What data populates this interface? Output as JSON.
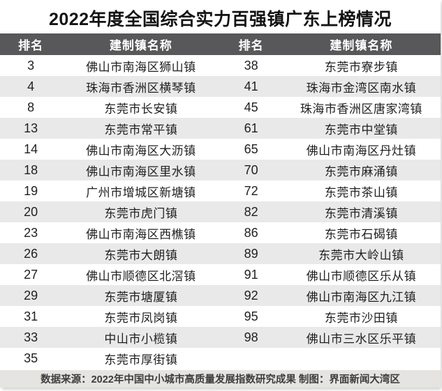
{
  "title": "2022年度全国综合实力百强镇广东上榜情况",
  "table": {
    "headers": {
      "rank_left": "排名",
      "town_left": "建制镇名称",
      "rank_right": "排名",
      "town_right": "建制镇名称"
    },
    "rows": [
      {
        "rank_left": "3",
        "town_left": "佛山市南海区狮山镇",
        "rank_right": "38",
        "town_right": "东莞市寮步镇"
      },
      {
        "rank_left": "4",
        "town_left": "珠海市香洲区横琴镇",
        "rank_right": "41",
        "town_right": "珠海市金湾区南水镇"
      },
      {
        "rank_left": "8",
        "town_left": "东莞市长安镇",
        "rank_right": "45",
        "town_right": "珠海市香洲区唐家湾镇"
      },
      {
        "rank_left": "13",
        "town_left": "东莞市常平镇",
        "rank_right": "61",
        "town_right": "东莞市中堂镇"
      },
      {
        "rank_left": "14",
        "town_left": "佛山市南海区大沥镇",
        "rank_right": "65",
        "town_right": "佛山市南海区丹灶镇"
      },
      {
        "rank_left": "18",
        "town_left": "佛山市南海区里水镇",
        "rank_right": "70",
        "town_right": "东莞市麻涌镇"
      },
      {
        "rank_left": "19",
        "town_left": "广州市增城区新塘镇",
        "rank_right": "72",
        "town_right": "东莞市茶山镇"
      },
      {
        "rank_left": "20",
        "town_left": "东莞市虎门镇",
        "rank_right": "82",
        "town_right": "东莞市清溪镇"
      },
      {
        "rank_left": "23",
        "town_left": "佛山市南海区西樵镇",
        "rank_right": "86",
        "town_right": "东莞市石碣镇"
      },
      {
        "rank_left": "26",
        "town_left": "东莞市大朗镇",
        "rank_right": "89",
        "town_right": "东莞市大岭山镇"
      },
      {
        "rank_left": "27",
        "town_left": "佛山市顺德区北滘镇",
        "rank_right": "91",
        "town_right": "佛山市顺德区乐从镇"
      },
      {
        "rank_left": "29",
        "town_left": "东莞市塘厦镇",
        "rank_right": "92",
        "town_right": "佛山市南海区九江镇"
      },
      {
        "rank_left": "31",
        "town_left": "东莞市凤岗镇",
        "rank_right": "95",
        "town_right": "东莞市沙田镇"
      },
      {
        "rank_left": "33",
        "town_left": "中山市小榄镇",
        "rank_right": "98",
        "town_right": "佛山市三水区乐平镇"
      },
      {
        "rank_left": "35",
        "town_left": "东莞市厚街镇",
        "rank_right": "",
        "town_right": ""
      }
    ]
  },
  "footer": {
    "source_line": "数据来源：2022年中国中小城市高质量发展指数研究成果 制图：界面新闻大湾区"
  },
  "colors": {
    "header_bg": "#58585a",
    "header_text": "#ffffff",
    "stripe_bg": "#e9e9e9",
    "footer_bg": "#e6e4e1",
    "title_text": "#141414",
    "body_text": "#1f1f1f"
  }
}
